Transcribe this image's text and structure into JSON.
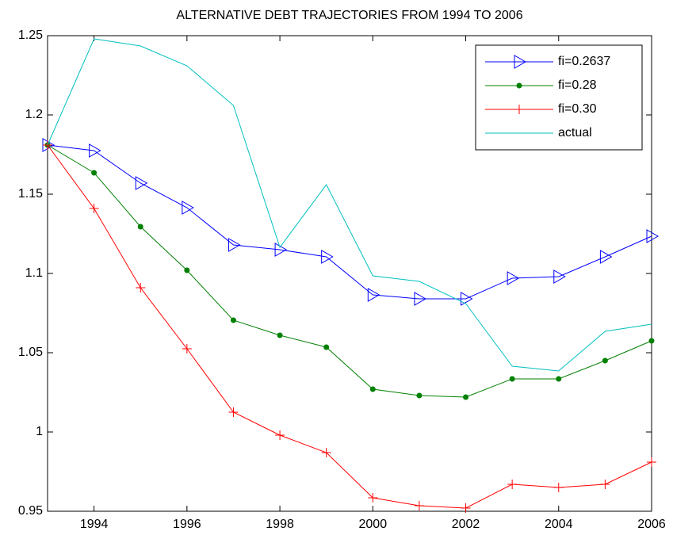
{
  "chart_data": {
    "type": "line",
    "title": "ALTERNATIVE DEBT TRAJECTORIES FROM 1994 TO 2006",
    "x": [
      1993,
      1994,
      1995,
      1996,
      1997,
      1998,
      1999,
      2000,
      2001,
      2002,
      2003,
      2004,
      2005,
      2006
    ],
    "xlim": [
      1993,
      2006
    ],
    "xticks": [
      1994,
      1996,
      1998,
      2000,
      2002,
      2004,
      2006
    ],
    "ylim": [
      0.95,
      1.25
    ],
    "yticks": [
      0.95,
      1,
      1.05,
      1.1,
      1.15,
      1.2,
      1.25
    ],
    "grid": false,
    "legend": "top-right",
    "series": [
      {
        "name": "fi=0.2637",
        "color": "#0000ff",
        "marker": "triangle-right",
        "values": [
          1.181,
          1.1775,
          1.157,
          1.1415,
          1.118,
          1.115,
          1.1105,
          1.0865,
          1.084,
          1.084,
          1.097,
          1.098,
          1.1105,
          1.1235
        ]
      },
      {
        "name": "fi=0.28",
        "color": "#008000",
        "marker": "dot",
        "values": [
          1.181,
          1.1635,
          1.1295,
          1.102,
          1.0705,
          1.061,
          1.0535,
          1.027,
          1.023,
          1.022,
          1.0335,
          1.0335,
          1.045,
          1.0575
        ]
      },
      {
        "name": "fi=0.30",
        "color": "#ff0000",
        "marker": "plus",
        "values": [
          1.181,
          1.141,
          1.091,
          1.0525,
          1.0125,
          0.998,
          0.987,
          0.9585,
          0.9535,
          0.952,
          0.967,
          0.965,
          0.967,
          0.981
        ]
      },
      {
        "name": "actual",
        "color": "#00bfbf",
        "marker": "none",
        "values": [
          1.181,
          1.248,
          1.2435,
          1.231,
          1.206,
          1.1165,
          1.156,
          1.0985,
          1.095,
          1.081,
          1.0415,
          1.0385,
          1.0635,
          1.068
        ]
      }
    ]
  }
}
